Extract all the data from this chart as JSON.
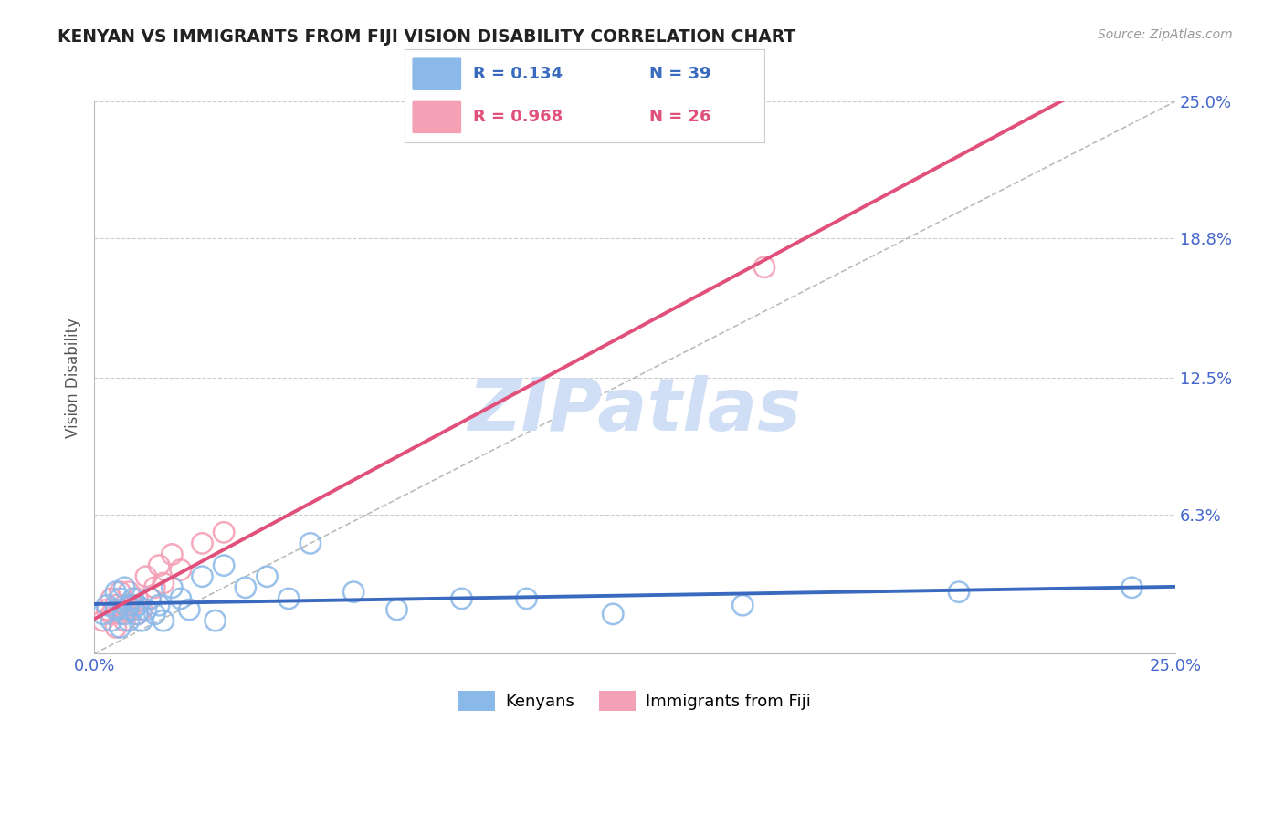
{
  "title": "KENYAN VS IMMIGRANTS FROM FIJI VISION DISABILITY CORRELATION CHART",
  "source": "Source: ZipAtlas.com",
  "ylabel": "Vision Disability",
  "xlim": [
    0.0,
    0.25
  ],
  "ylim": [
    0.0,
    0.25
  ],
  "legend_r_kenya": "R = 0.134",
  "legend_n_kenya": "N = 39",
  "legend_r_fiji": "R = 0.968",
  "legend_n_fiji": "N = 26",
  "kenya_color": "#8ab8e8",
  "fiji_color": "#f4a0b5",
  "kenya_line_color": "#3a6abf",
  "fiji_line_color": "#e0507a",
  "ref_line_color": "#bbbbbb",
  "grid_color": "#cccccc",
  "watermark_color": "#d0dff5",
  "title_color": "#222222",
  "tick_label_color": "#4466cc",
  "kenya_scatter_x": [
    0.002,
    0.003,
    0.004,
    0.005,
    0.005,
    0.006,
    0.006,
    0.007,
    0.007,
    0.008,
    0.008,
    0.009,
    0.009,
    0.01,
    0.01,
    0.011,
    0.012,
    0.013,
    0.014,
    0.015,
    0.016,
    0.018,
    0.02,
    0.022,
    0.025,
    0.028,
    0.03,
    0.035,
    0.04,
    0.045,
    0.05,
    0.06,
    0.07,
    0.085,
    0.1,
    0.12,
    0.15,
    0.2,
    0.24
  ],
  "kenya_scatter_y": [
    0.018,
    0.022,
    0.015,
    0.02,
    0.028,
    0.012,
    0.025,
    0.018,
    0.03,
    0.015,
    0.022,
    0.02,
    0.025,
    0.018,
    0.022,
    0.015,
    0.02,
    0.025,
    0.018,
    0.022,
    0.015,
    0.03,
    0.025,
    0.02,
    0.035,
    0.015,
    0.04,
    0.03,
    0.035,
    0.025,
    0.05,
    0.028,
    0.02,
    0.025,
    0.025,
    0.018,
    0.022,
    0.028,
    0.03
  ],
  "fiji_scatter_x": [
    0.002,
    0.003,
    0.004,
    0.004,
    0.005,
    0.005,
    0.006,
    0.006,
    0.007,
    0.007,
    0.008,
    0.008,
    0.009,
    0.01,
    0.01,
    0.011,
    0.012,
    0.013,
    0.014,
    0.015,
    0.016,
    0.018,
    0.02,
    0.025,
    0.03,
    0.155
  ],
  "fiji_scatter_y": [
    0.015,
    0.02,
    0.018,
    0.025,
    0.012,
    0.022,
    0.018,
    0.028,
    0.015,
    0.022,
    0.02,
    0.028,
    0.022,
    0.018,
    0.025,
    0.02,
    0.035,
    0.025,
    0.03,
    0.04,
    0.032,
    0.045,
    0.038,
    0.05,
    0.055,
    0.175
  ]
}
